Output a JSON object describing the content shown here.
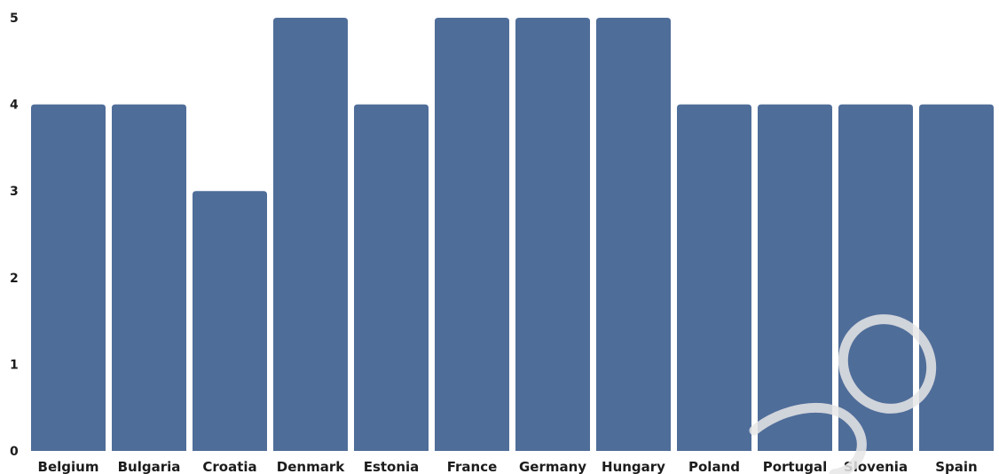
{
  "chart_data": {
    "type": "bar",
    "categories": [
      "Belgium",
      "Bulgaria",
      "Croatia",
      "Denmark",
      "Estonia",
      "France",
      "Germany",
      "Hungary",
      "Poland",
      "Portugal",
      "Slovenia",
      "Spain"
    ],
    "values": [
      4,
      4,
      3,
      5,
      4,
      5,
      5,
      5,
      4,
      4,
      4,
      4
    ],
    "title": "",
    "xlabel": "",
    "ylabel": "",
    "ylim": [
      0,
      5
    ],
    "yticks": [
      "0",
      "1",
      "2",
      "3",
      "4",
      "5"
    ],
    "grid": false,
    "bar_color": "#4f6d99",
    "watermark_color": "#e6e6e6"
  }
}
